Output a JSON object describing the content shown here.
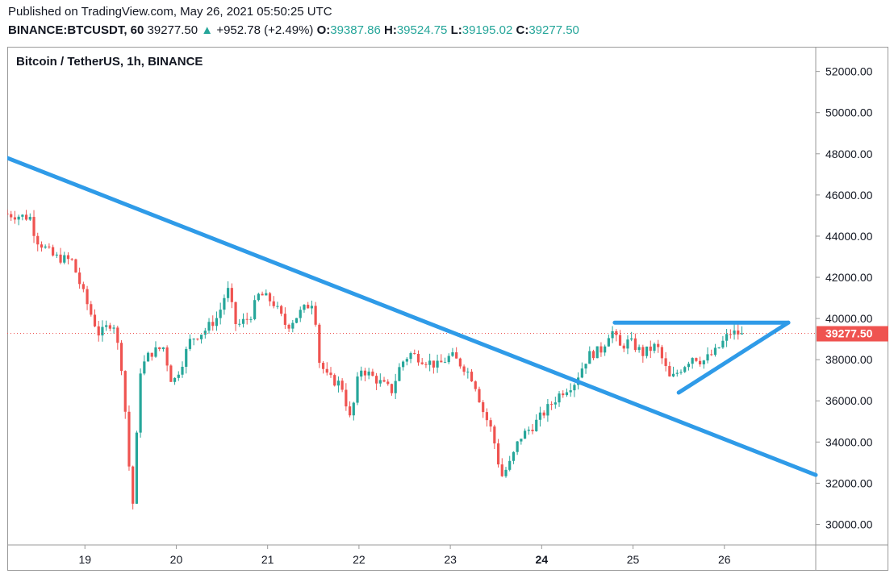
{
  "header": {
    "published": "Published on TradingView.com, May 26, 2021 05:50:25 UTC",
    "symbol": "BINANCE:BTCUSDT, 60",
    "last": "39277.50",
    "arrow": "▲",
    "change": "+952.78 (+2.49%)",
    "o_label": "O:",
    "o_value": "39387.86",
    "h_label": "H:",
    "h_value": "39524.75",
    "l_label": "L:",
    "l_value": "39195.02",
    "c_label": "C:",
    "c_value": "39277.50"
  },
  "colors": {
    "up": "#26a69a",
    "down": "#ef5350",
    "trendline": "#2f9be8",
    "price_label_bg": "#ef5350"
  },
  "chart_data": {
    "type": "candlestick",
    "title": "Bitcoin / TetherUS, 1h, BINANCE",
    "x_ticks": [
      "19",
      "20",
      "21",
      "22",
      "23",
      "24",
      "25",
      "26"
    ],
    "y_ticks": [
      "52000.00",
      "50000.00",
      "48000.00",
      "46000.00",
      "44000.00",
      "42000.00",
      "40000.00",
      "38000.00",
      "36000.00",
      "34000.00",
      "32000.00",
      "30000.00"
    ],
    "ylim": [
      29000,
      53200
    ],
    "xlim": [
      18.15,
      27.0
    ],
    "last_price": 39277.5,
    "last_price_label": "39277.50",
    "candles_approx": [
      [
        18.15,
        45100
      ],
      [
        18.3,
        45000
      ],
      [
        18.45,
        44900
      ],
      [
        18.5,
        43900
      ],
      [
        18.7,
        43000
      ],
      [
        18.9,
        42800
      ],
      [
        19.0,
        41500
      ],
      [
        19.1,
        40300
      ],
      [
        19.2,
        39200
      ],
      [
        19.35,
        39900
      ],
      [
        19.45,
        37500
      ],
      [
        19.5,
        34500
      ],
      [
        19.56,
        30500
      ],
      [
        19.65,
        37500
      ],
      [
        19.75,
        38300
      ],
      [
        19.9,
        38600
      ],
      [
        20.0,
        36800
      ],
      [
        20.1,
        37800
      ],
      [
        20.2,
        39000
      ],
      [
        20.35,
        39400
      ],
      [
        20.5,
        40100
      ],
      [
        20.6,
        41500
      ],
      [
        20.7,
        39600
      ],
      [
        20.85,
        40100
      ],
      [
        20.95,
        41200
      ],
      [
        21.1,
        40800
      ],
      [
        21.25,
        39600
      ],
      [
        21.4,
        40300
      ],
      [
        21.55,
        40900
      ],
      [
        21.6,
        38000
      ],
      [
        21.7,
        37100
      ],
      [
        21.85,
        36800
      ],
      [
        21.95,
        35000
      ],
      [
        22.05,
        37600
      ],
      [
        22.15,
        37300
      ],
      [
        22.3,
        36800
      ],
      [
        22.4,
        36500
      ],
      [
        22.5,
        37800
      ],
      [
        22.6,
        38300
      ],
      [
        22.75,
        38000
      ],
      [
        22.9,
        37700
      ],
      [
        23.05,
        38200
      ],
      [
        23.2,
        37600
      ],
      [
        23.3,
        37000
      ],
      [
        23.4,
        35500
      ],
      [
        23.5,
        34500
      ],
      [
        23.6,
        32300
      ],
      [
        23.7,
        33000
      ],
      [
        23.8,
        34200
      ],
      [
        23.95,
        34800
      ],
      [
        24.1,
        35600
      ],
      [
        24.25,
        36400
      ],
      [
        24.4,
        36900
      ],
      [
        24.55,
        38200
      ],
      [
        24.7,
        38500
      ],
      [
        24.8,
        39500
      ],
      [
        24.9,
        38600
      ],
      [
        25.0,
        38900
      ],
      [
        25.15,
        38300
      ],
      [
        25.3,
        38700
      ],
      [
        25.45,
        37000
      ],
      [
        25.55,
        37500
      ],
      [
        25.7,
        38200
      ],
      [
        25.8,
        37900
      ],
      [
        25.95,
        38400
      ],
      [
        26.1,
        39300
      ],
      [
        26.2,
        39277.5
      ]
    ],
    "trendlines": [
      {
        "name": "descending",
        "points": [
          [
            18.15,
            47800
          ],
          [
            27.0,
            32400
          ]
        ]
      },
      {
        "name": "flat-top",
        "points": [
          [
            24.8,
            39800
          ],
          [
            26.7,
            39800
          ]
        ]
      },
      {
        "name": "rising-support",
        "points": [
          [
            25.5,
            36400
          ],
          [
            26.7,
            39800
          ]
        ]
      }
    ]
  }
}
